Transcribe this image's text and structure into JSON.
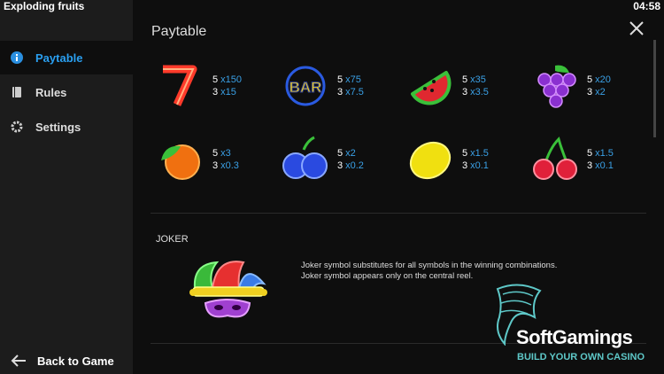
{
  "header": {
    "title": "Exploding fruits",
    "time": "04:58"
  },
  "menu": {
    "items": [
      {
        "label": "Paytable",
        "active": true
      },
      {
        "label": "Rules",
        "active": false
      },
      {
        "label": "Settings",
        "active": false
      }
    ],
    "back": "Back to Game"
  },
  "paytable": {
    "title": "Paytable",
    "symbols": [
      {
        "pays": [
          {
            "count": "5",
            "mult": "x150"
          },
          {
            "count": "3",
            "mult": "x15"
          }
        ]
      },
      {
        "icon_text": "BAR",
        "pays": [
          {
            "count": "5",
            "mult": "x75"
          },
          {
            "count": "3",
            "mult": "x7.5"
          }
        ]
      },
      {
        "pays": [
          {
            "count": "5",
            "mult": "x35"
          },
          {
            "count": "3",
            "mult": "x3.5"
          }
        ]
      },
      {
        "pays": [
          {
            "count": "5",
            "mult": "x20"
          },
          {
            "count": "3",
            "mult": "x2"
          }
        ]
      },
      {
        "pays": [
          {
            "count": "5",
            "mult": "x3"
          },
          {
            "count": "3",
            "mult": "x0.3"
          }
        ]
      },
      {
        "pays": [
          {
            "count": "5",
            "mult": "x2"
          },
          {
            "count": "3",
            "mult": "x0.2"
          }
        ]
      },
      {
        "pays": [
          {
            "count": "5",
            "mult": "x1.5"
          },
          {
            "count": "3",
            "mult": "x0.1"
          }
        ]
      },
      {
        "pays": [
          {
            "count": "5",
            "mult": "x1.5"
          },
          {
            "count": "3",
            "mult": "x0.1"
          }
        ]
      }
    ]
  },
  "joker": {
    "title": "JOKER",
    "lines": [
      "Joker symbol substitutes for all symbols in the winning combinations.",
      "Joker symbol appears only on the central reel."
    ]
  },
  "watermark": {
    "name": "SoftGamings",
    "tagline": "BUILD YOUR OWN CASINO"
  }
}
